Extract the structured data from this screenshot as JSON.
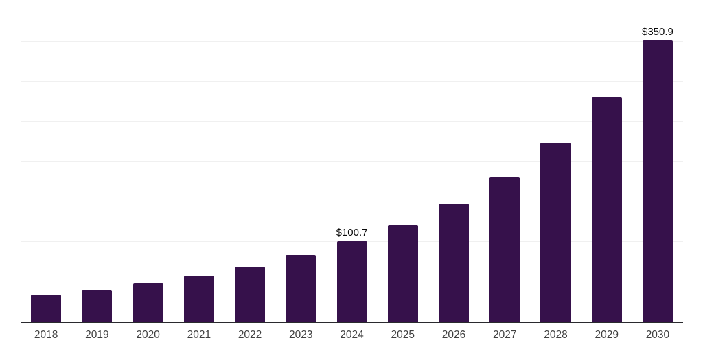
{
  "chart_data": {
    "type": "bar",
    "title": "",
    "xlabel": "",
    "ylabel": "",
    "categories": [
      "2018",
      "2019",
      "2020",
      "2021",
      "2022",
      "2023",
      "2024",
      "2025",
      "2026",
      "2027",
      "2028",
      "2029",
      "2030"
    ],
    "values": [
      34,
      40,
      48.5,
      58,
      69,
      83.5,
      100.7,
      121,
      148,
      181,
      224,
      280,
      350.9
    ],
    "data_labels": [
      "",
      "",
      "",
      "",
      "",
      "",
      "$100.7",
      "",
      "",
      "",
      "",
      "",
      "$350.9"
    ],
    "ylim": [
      0,
      400
    ],
    "gridline_step": 50,
    "grid": true,
    "legend_position": "none",
    "colors": {
      "bar": "#36114B",
      "gridline": "#f0f0f0",
      "axis_line": "#2a2a2e",
      "tick_label": "#3f3f3f",
      "data_label": "#0a0a0a",
      "background": "#ffffff"
    }
  }
}
